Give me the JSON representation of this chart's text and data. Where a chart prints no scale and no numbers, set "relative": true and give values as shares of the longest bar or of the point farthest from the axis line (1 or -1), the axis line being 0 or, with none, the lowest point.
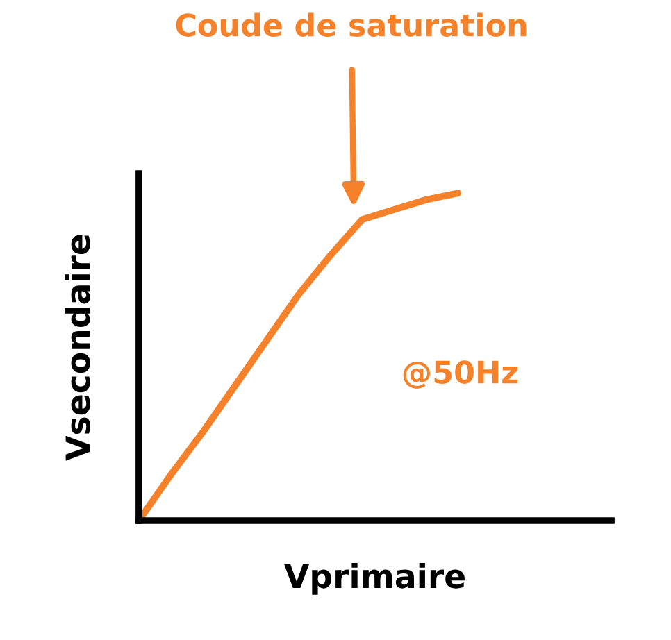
{
  "chart_data": {
    "type": "line",
    "relative": true,
    "xlabel": "Vprimaire",
    "ylabel": "Vsecondaire",
    "categories": [
      null,
      null,
      null,
      null,
      null,
      null,
      null,
      null,
      null,
      null,
      null,
      null,
      null,
      null,
      null
    ],
    "series": [
      {
        "color": "#f5822a",
        "values": [
          0,
          0.14,
          0.27,
          0.41,
          0.55,
          0.69,
          0.81,
          0.92,
          0.95,
          0.98,
          1.0,
          null,
          null,
          null,
          null
        ]
      }
    ],
    "annotations": [
      "Coude de saturation",
      "@50Hz"
    ],
    "grid": false,
    "legend": false,
    "marker": "none",
    "line_style": "solid",
    "tick_labels": false
  }
}
